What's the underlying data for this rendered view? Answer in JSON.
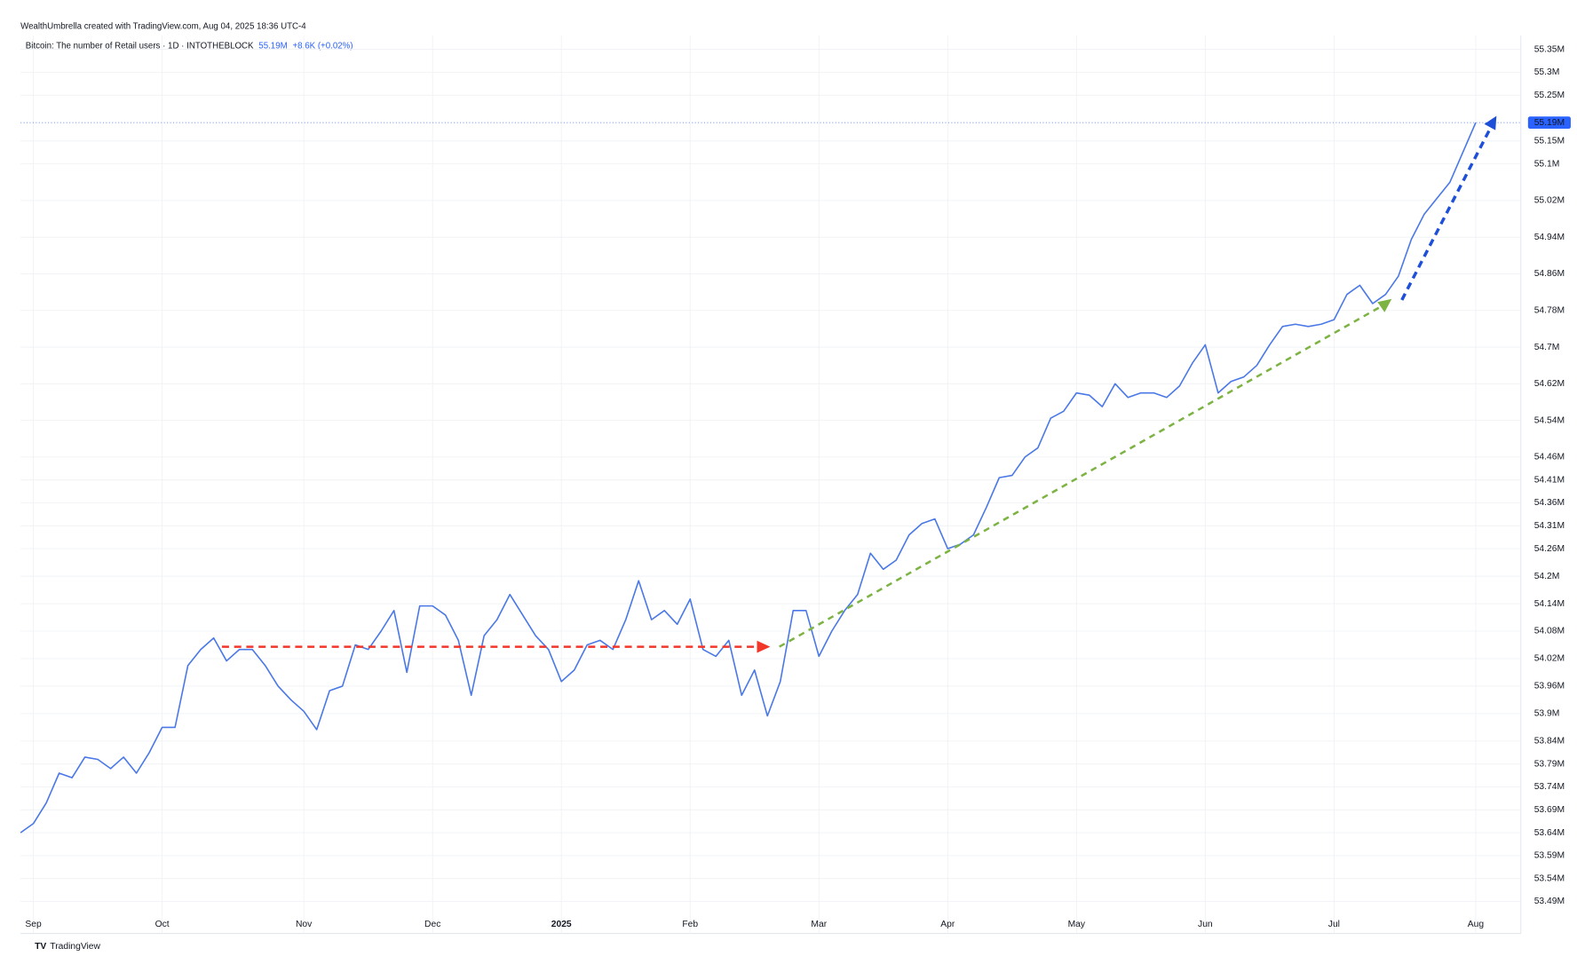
{
  "header": {
    "credit": "WealthUmbrella created with TradingView.com, Aug 04, 2025 18:36 UTC-4",
    "symbol": "Bitcoin: The number of Retail users · 1D · INTOTHEBLOCK",
    "last": "55.19M",
    "change": "+8.6K (+0.02%)"
  },
  "footer": {
    "brand": "TradingView"
  },
  "chart_data": {
    "type": "line",
    "grid": true,
    "log_scale": false,
    "categories": [
      null,
      "Sep",
      null,
      null,
      null,
      null,
      null,
      null,
      null,
      null,
      null,
      "Oct",
      null,
      null,
      null,
      null,
      null,
      null,
      null,
      null,
      null,
      null,
      "Nov",
      null,
      null,
      null,
      null,
      null,
      null,
      null,
      null,
      null,
      "Dec",
      null,
      null,
      null,
      null,
      null,
      null,
      null,
      null,
      null,
      "2025",
      null,
      null,
      null,
      null,
      null,
      null,
      null,
      null,
      null,
      "Feb",
      null,
      null,
      null,
      null,
      null,
      null,
      null,
      null,
      null,
      "Mar",
      null,
      null,
      null,
      null,
      null,
      null,
      null,
      null,
      null,
      "Apr",
      null,
      null,
      null,
      null,
      null,
      null,
      null,
      null,
      null,
      "May",
      null,
      null,
      null,
      null,
      null,
      null,
      null,
      null,
      null,
      "Jun",
      null,
      null,
      null,
      null,
      null,
      null,
      null,
      null,
      null,
      "Jul",
      null,
      null,
      null,
      null,
      null,
      null,
      null,
      null,
      null,
      null,
      "Aug"
    ],
    "series": [
      {
        "name": "Bitcoin: The number of Retail users",
        "color": "#4a78e6",
        "values": [
          53.64,
          53.66,
          53.705,
          53.77,
          53.76,
          53.805,
          53.8,
          53.78,
          53.805,
          53.77,
          53.815,
          53.87,
          53.87,
          54.005,
          54.04,
          54.065,
          54.015,
          54.04,
          54.04,
          54.005,
          53.96,
          53.93,
          53.905,
          53.865,
          53.95,
          53.96,
          54.05,
          54.04,
          54.08,
          54.125,
          53.99,
          54.135,
          54.135,
          54.115,
          54.06,
          53.94,
          54.07,
          54.105,
          54.16,
          54.115,
          54.07,
          54.04,
          53.97,
          53.995,
          54.05,
          54.06,
          54.04,
          54.105,
          54.19,
          54.105,
          54.125,
          54.095,
          54.15,
          54.04,
          54.025,
          54.06,
          53.94,
          53.995,
          53.895,
          53.97,
          54.125,
          54.125,
          54.025,
          54.08,
          54.125,
          54.16,
          54.25,
          54.215,
          54.235,
          54.29,
          54.315,
          54.325,
          54.26,
          54.27,
          54.29,
          54.35,
          54.415,
          54.42,
          54.46,
          54.48,
          54.545,
          54.56,
          54.6,
          54.595,
          54.57,
          54.62,
          54.59,
          54.6,
          54.6,
          54.59,
          54.615,
          54.665,
          54.705,
          54.6,
          54.625,
          54.635,
          54.66,
          54.705,
          54.745,
          54.75,
          54.745,
          54.75,
          54.76,
          54.815,
          54.835,
          54.795,
          54.815,
          54.855,
          54.935,
          54.99,
          55.025,
          55.06,
          55.125,
          55.19
        ],
        "value_labels": [
          null,
          null,
          null,
          null,
          null,
          null,
          null,
          null,
          null,
          null,
          null,
          null,
          null,
          null,
          null,
          null,
          null,
          null,
          null,
          null,
          null,
          null,
          null,
          null,
          null,
          null,
          null,
          null,
          null,
          null,
          null,
          null,
          null,
          null,
          null,
          null,
          null,
          null,
          null,
          null,
          null,
          null,
          null,
          null,
          null,
          null,
          null,
          null,
          null,
          null,
          null,
          null,
          null,
          null,
          null,
          null,
          null,
          null,
          null,
          null,
          null,
          null,
          null,
          null,
          null,
          null,
          null,
          null,
          null,
          null,
          null,
          null,
          null,
          null,
          null,
          null,
          null,
          null,
          null,
          null,
          null,
          null,
          null,
          null,
          null,
          null,
          null,
          null,
          null,
          null,
          null,
          null,
          null,
          null,
          null,
          null,
          null,
          null,
          null,
          null,
          null,
          null,
          null,
          null,
          null,
          null,
          null,
          null,
          null,
          null,
          null,
          null,
          null,
          "55.19M"
        ]
      }
    ],
    "ylim": [
      53.42,
      55.38
    ],
    "yticks": [
      {
        "value": 55.35,
        "label": "55.35M"
      },
      {
        "value": 55.3,
        "label": "55.3M"
      },
      {
        "value": 55.25,
        "label": "55.25M"
      },
      {
        "value": 55.15,
        "label": "55.15M"
      },
      {
        "value": 55.1,
        "label": "55.1M"
      },
      {
        "value": 55.02,
        "label": "55.02M"
      },
      {
        "value": 54.94,
        "label": "54.94M"
      },
      {
        "value": 54.86,
        "label": "54.86M"
      },
      {
        "value": 54.78,
        "label": "54.78M"
      },
      {
        "value": 54.7,
        "label": "54.7M"
      },
      {
        "value": 54.62,
        "label": "54.62M"
      },
      {
        "value": 54.54,
        "label": "54.54M"
      },
      {
        "value": 54.46,
        "label": "54.46M"
      },
      {
        "value": 54.41,
        "label": "54.41M"
      },
      {
        "value": 54.36,
        "label": "54.36M"
      },
      {
        "value": 54.31,
        "label": "54.31M"
      },
      {
        "value": 54.26,
        "label": "54.26M"
      },
      {
        "value": 54.2,
        "label": "54.2M"
      },
      {
        "value": 54.14,
        "label": "54.14M"
      },
      {
        "value": 54.08,
        "label": "54.08M"
      },
      {
        "value": 54.02,
        "label": "54.02M"
      },
      {
        "value": 53.96,
        "label": "53.96M"
      },
      {
        "value": 53.9,
        "label": "53.9M"
      },
      {
        "value": 53.84,
        "label": "53.84M"
      },
      {
        "value": 53.79,
        "label": "53.79M"
      },
      {
        "value": 53.74,
        "label": "53.74M"
      },
      {
        "value": 53.69,
        "label": "53.69M"
      },
      {
        "value": 53.64,
        "label": "53.64M"
      },
      {
        "value": 53.59,
        "label": "53.59M"
      },
      {
        "value": 53.54,
        "label": "53.54M"
      },
      {
        "value": 53.49,
        "label": "53.49M"
      }
    ]
  }
}
